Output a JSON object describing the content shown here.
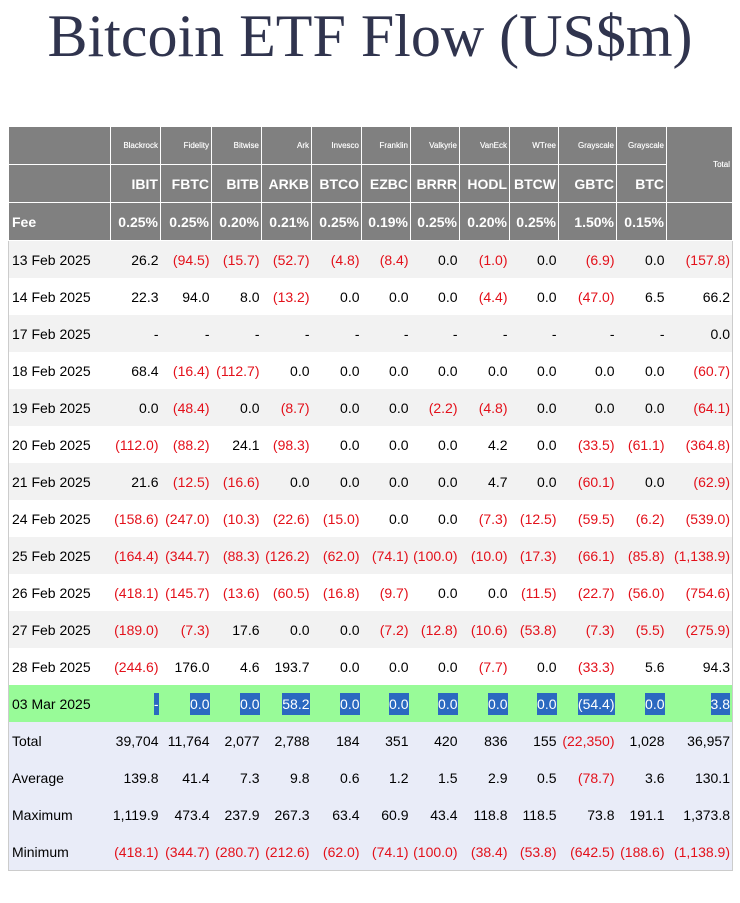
{
  "title": "Bitcoin ETF Flow (US$m)",
  "table": {
    "issuers": [
      "Blackrock",
      "Fidelity",
      "Bitwise",
      "Ark",
      "Invesco",
      "Franklin",
      "Valkyrie",
      "VanEck",
      "WTree",
      "Grayscale",
      "Grayscale"
    ],
    "total_header": "Total",
    "tickers": [
      "IBIT",
      "FBTC",
      "BITB",
      "ARKB",
      "BTCO",
      "EZBC",
      "BRRR",
      "HODL",
      "BTCW",
      "GBTC",
      "BTC"
    ],
    "fee": {
      "label": "Fee",
      "values": [
        "0.25%",
        "0.25%",
        "0.20%",
        "0.21%",
        "0.25%",
        "0.19%",
        "0.25%",
        "0.20%",
        "0.25%",
        "1.50%",
        "0.15%"
      ]
    },
    "rows": [
      {
        "label": "13 Feb 2025",
        "cells": [
          "26.2",
          "(94.5)",
          "(15.7)",
          "(52.7)",
          "(4.8)",
          "(8.4)",
          "0.0",
          "(1.0)",
          "0.0",
          "(6.9)",
          "0.0",
          "(157.8)"
        ]
      },
      {
        "label": "14 Feb 2025",
        "cells": [
          "22.3",
          "94.0",
          "8.0",
          "(13.2)",
          "0.0",
          "0.0",
          "0.0",
          "(4.4)",
          "0.0",
          "(47.0)",
          "6.5",
          "66.2"
        ]
      },
      {
        "label": "17 Feb 2025",
        "cells": [
          "-",
          "-",
          "-",
          "-",
          "-",
          "-",
          "-",
          "-",
          "-",
          "-",
          "-",
          "0.0"
        ]
      },
      {
        "label": "18 Feb 2025",
        "cells": [
          "68.4",
          "(16.4)",
          "(112.7)",
          "0.0",
          "0.0",
          "0.0",
          "0.0",
          "0.0",
          "0.0",
          "0.0",
          "0.0",
          "(60.7)"
        ]
      },
      {
        "label": "19 Feb 2025",
        "cells": [
          "0.0",
          "(48.4)",
          "0.0",
          "(8.7)",
          "0.0",
          "0.0",
          "(2.2)",
          "(4.8)",
          "0.0",
          "0.0",
          "0.0",
          "(64.1)"
        ]
      },
      {
        "label": "20 Feb 2025",
        "cells": [
          "(112.0)",
          "(88.2)",
          "24.1",
          "(98.3)",
          "0.0",
          "0.0",
          "0.0",
          "4.2",
          "0.0",
          "(33.5)",
          "(61.1)",
          "(364.8)"
        ]
      },
      {
        "label": "21 Feb 2025",
        "cells": [
          "21.6",
          "(12.5)",
          "(16.6)",
          "0.0",
          "0.0",
          "0.0",
          "0.0",
          "4.7",
          "0.0",
          "(60.1)",
          "0.0",
          "(62.9)"
        ]
      },
      {
        "label": "24 Feb 2025",
        "cells": [
          "(158.6)",
          "(247.0)",
          "(10.3)",
          "(22.6)",
          "(15.0)",
          "0.0",
          "0.0",
          "(7.3)",
          "(12.5)",
          "(59.5)",
          "(6.2)",
          "(539.0)"
        ]
      },
      {
        "label": "25 Feb 2025",
        "cells": [
          "(164.4)",
          "(344.7)",
          "(88.3)",
          "(126.2)",
          "(62.0)",
          "(74.1)",
          "(100.0)",
          "(10.0)",
          "(17.3)",
          "(66.1)",
          "(85.8)",
          "(1,138.9)"
        ]
      },
      {
        "label": "26 Feb 2025",
        "cells": [
          "(418.1)",
          "(145.7)",
          "(13.6)",
          "(60.5)",
          "(16.8)",
          "(9.7)",
          "0.0",
          "0.0",
          "(11.5)",
          "(22.7)",
          "(56.0)",
          "(754.6)"
        ]
      },
      {
        "label": "27 Feb 2025",
        "cells": [
          "(189.0)",
          "(7.3)",
          "17.6",
          "0.0",
          "0.0",
          "(7.2)",
          "(12.8)",
          "(10.6)",
          "(53.8)",
          "(7.3)",
          "(5.5)",
          "(275.9)"
        ]
      },
      {
        "label": "28 Feb 2025",
        "cells": [
          "(244.6)",
          "176.0",
          "4.6",
          "193.7",
          "0.0",
          "0.0",
          "0.0",
          "(7.7)",
          "0.0",
          "(33.3)",
          "5.6",
          "94.3"
        ]
      },
      {
        "label": "03 Mar 2025",
        "cells": [
          "-",
          "0.0",
          "0.0",
          "58.2",
          "0.0",
          "0.0",
          "0.0",
          "0.0",
          "0.0",
          "(54.4)",
          "0.0",
          "3.8"
        ]
      }
    ],
    "summary": [
      {
        "label": "Total",
        "cells": [
          "39,704",
          "11,764",
          "2,077",
          "2,788",
          "184",
          "351",
          "420",
          "836",
          "155",
          "(22,350)",
          "1,028",
          "36,957"
        ]
      },
      {
        "label": "Average",
        "cells": [
          "139.8",
          "41.4",
          "7.3",
          "9.8",
          "0.6",
          "1.2",
          "1.5",
          "2.9",
          "0.5",
          "(78.7)",
          "3.6",
          "130.1"
        ]
      },
      {
        "label": "Maximum",
        "cells": [
          "1,119.9",
          "473.4",
          "237.9",
          "267.3",
          "63.4",
          "60.9",
          "43.4",
          "118.8",
          "118.5",
          "73.8",
          "191.1",
          "1,373.8"
        ]
      },
      {
        "label": "Minimum",
        "cells": [
          "(418.1)",
          "(344.7)",
          "(280.7)",
          "(212.6)",
          "(62.0)",
          "(74.1)",
          "(100.0)",
          "(38.4)",
          "(53.8)",
          "(642.5)",
          "(188.6)",
          "(1,138.9)"
        ]
      }
    ]
  }
}
